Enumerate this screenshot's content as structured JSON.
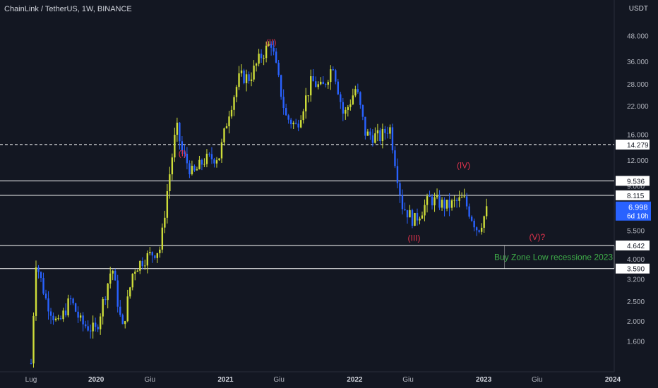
{
  "header": {
    "title": "ChainLink / TetherUS, 1W, BINANCE",
    "unit": "USDT"
  },
  "colors": {
    "background": "#131722",
    "bull": "#cddc39",
    "bear": "#2962ff",
    "wave": "#e0334d",
    "level_line": "#ffffff",
    "dashed_line": "#ffffff",
    "zone_text": "#3fae49",
    "axis_text": "#b2b5be",
    "price_badge": "#2962ff"
  },
  "chart_data": {
    "type": "candlestick",
    "scale": "log",
    "ylim": [
      1.28,
      62.0
    ],
    "y_ticks": [
      "48.000",
      "36.000",
      "28.000",
      "22.000",
      "16.000",
      "12.000",
      "9.000",
      "5.500",
      "4.000",
      "3.200",
      "2.500",
      "2.000",
      "1.600"
    ],
    "x_ticks": [
      "Lug",
      "2020",
      "Giu",
      "2021",
      "Giu",
      "2022",
      "Giu",
      "2023",
      "Giu",
      "2024"
    ],
    "x_ticks_bold": [
      "2020",
      "2021",
      "2022",
      "2023",
      "2024"
    ],
    "price_levels": [
      {
        "label": "14.279",
        "value": 14.279,
        "style": "dashed"
      },
      {
        "label": "9.536",
        "value": 9.536,
        "style": "solid"
      },
      {
        "label": "8.115",
        "value": 8.115,
        "style": "solid"
      },
      {
        "label": "4.642",
        "value": 4.642,
        "style": "solid"
      },
      {
        "label": "3.590",
        "value": 3.59,
        "style": "solid"
      }
    ],
    "current_price": {
      "value": 6.998,
      "label": "6.998",
      "countdown": "6d 10h"
    },
    "wave_labels": [
      {
        "text": "(I)",
        "price": 12.95,
        "date": "2020-09-01"
      },
      {
        "text": "(II)",
        "price": 44.5,
        "date": "2021-05-10"
      },
      {
        "text": "(III)",
        "price": 5.05,
        "date": "2022-06-18"
      },
      {
        "text": "(IV)",
        "price": 11.3,
        "date": "2022-11-05"
      },
      {
        "text": "(V)?",
        "price": 5.1,
        "date": "2023-06-01"
      }
    ],
    "zone_label": "Buy Zone Low recessione 2023",
    "series_anchor_closes": [
      [
        "2019-07-01",
        1.25
      ],
      [
        "2019-07-15",
        3.9
      ],
      [
        "2019-08-12",
        2.55
      ],
      [
        "2019-09-15",
        1.9
      ],
      [
        "2019-10-20",
        2.55
      ],
      [
        "2019-11-20",
        1.95
      ],
      [
        "2019-12-31",
        1.8
      ],
      [
        "2020-02-15",
        3.7
      ],
      [
        "2020-03-15",
        1.8
      ],
      [
        "2020-04-15",
        3.55
      ],
      [
        "2020-05-15",
        4.0
      ],
      [
        "2020-07-01",
        4.5
      ],
      [
        "2020-07-20",
        8.5
      ],
      [
        "2020-08-15",
        17.5
      ],
      [
        "2020-09-01",
        13.0
      ],
      [
        "2020-10-01",
        10.2
      ],
      [
        "2020-11-01",
        12.0
      ],
      [
        "2020-12-15",
        12.6
      ],
      [
        "2021-01-10",
        20.5
      ],
      [
        "2021-02-10",
        30.5
      ],
      [
        "2021-03-10",
        30.0
      ],
      [
        "2021-04-10",
        38.0
      ],
      [
        "2021-05-10",
        44.5
      ],
      [
        "2021-06-20",
        19.5
      ],
      [
        "2021-07-20",
        17.5
      ],
      [
        "2021-09-01",
        29.0
      ],
      [
        "2021-10-01",
        26.5
      ],
      [
        "2021-11-01",
        35.0
      ],
      [
        "2021-12-01",
        19.5
      ],
      [
        "2022-01-05",
        27.0
      ],
      [
        "2022-02-01",
        16.0
      ],
      [
        "2022-03-15",
        15.5
      ],
      [
        "2022-04-10",
        17.5
      ],
      [
        "2022-05-15",
        7.3
      ],
      [
        "2022-06-18",
        6.1
      ],
      [
        "2022-08-01",
        7.8
      ],
      [
        "2022-09-20",
        7.2
      ],
      [
        "2022-11-05",
        7.8
      ],
      [
        "2022-12-15",
        5.5
      ],
      [
        "2023-01-12",
        6.998
      ]
    ]
  }
}
